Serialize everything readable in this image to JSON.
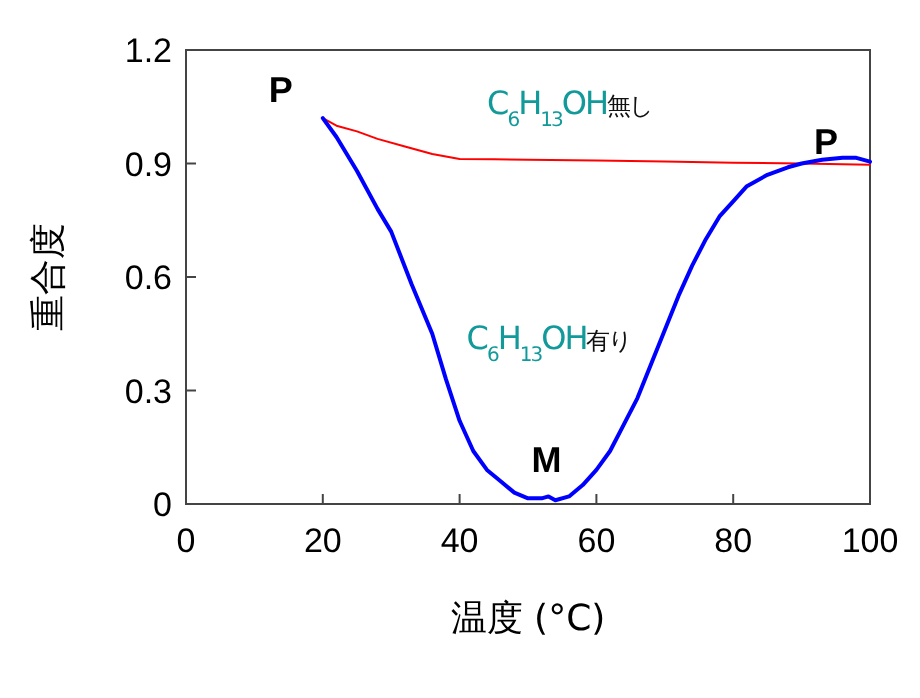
{
  "chart_data": {
    "type": "line",
    "xlabel": "温度 (°C)",
    "ylabel": "重合度",
    "xlim": [
      0,
      100
    ],
    "xticks": [
      0,
      20,
      40,
      60,
      80,
      100
    ],
    "ylim": [
      0,
      1.2
    ],
    "yticks": [
      0,
      0.3,
      0.6,
      0.9,
      1.2
    ],
    "grid": false,
    "marker": "none",
    "line_style": "solid",
    "series": [
      {
        "name": "C$_{6}$H$_{13}$OH無し",
        "color": "#ff0000",
        "x": [
          20,
          22,
          25,
          28,
          32,
          36,
          40,
          45,
          50,
          60,
          70,
          80,
          90,
          100
        ],
        "values": [
          1.02,
          1.0,
          0.985,
          0.965,
          0.945,
          0.925,
          0.912,
          0.911,
          0.91,
          0.908,
          0.905,
          0.902,
          0.9,
          0.897
        ]
      },
      {
        "name": "C$_{6}$H$_{13}$OH有り",
        "color": "#0000ff",
        "x": [
          20,
          22,
          25,
          28,
          30,
          33,
          36,
          38,
          40,
          42,
          44,
          46,
          48,
          50,
          52,
          53,
          54,
          56,
          58,
          60,
          62,
          64,
          66,
          68,
          70,
          72,
          74,
          76,
          78,
          80,
          82,
          85,
          88,
          90,
          93,
          96,
          98,
          100
        ],
        "values": [
          1.02,
          0.97,
          0.88,
          0.78,
          0.72,
          0.58,
          0.45,
          0.33,
          0.22,
          0.14,
          0.09,
          0.06,
          0.03,
          0.015,
          0.015,
          0.02,
          0.01,
          0.02,
          0.05,
          0.09,
          0.14,
          0.21,
          0.28,
          0.37,
          0.46,
          0.55,
          0.63,
          0.7,
          0.76,
          0.8,
          0.84,
          0.87,
          0.89,
          0.9,
          0.91,
          0.915,
          0.915,
          0.905
        ]
      }
    ],
    "annotations": [
      {
        "text": "P",
        "x": 20,
        "y": 1.02
      },
      {
        "text": "M",
        "x": 53,
        "y": 0.01
      },
      {
        "text": "P",
        "x": 93,
        "y": 0.91
      }
    ]
  }
}
